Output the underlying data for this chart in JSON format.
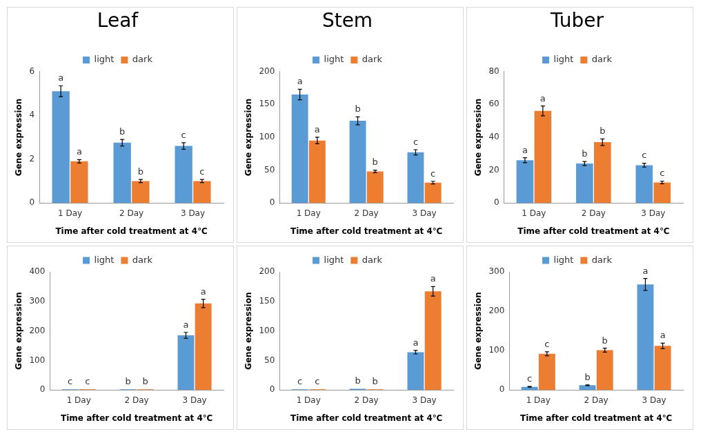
{
  "chart_data": [
    {
      "type": "bar",
      "title": "Leaf",
      "xlabel": "Time after cold treatment at 4℃",
      "ylabel": "Gene expression",
      "categories": [
        "1 Day",
        "2 Day",
        "3 Day"
      ],
      "ylim": [
        0,
        6
      ],
      "yticks": [
        0,
        2,
        4,
        6
      ],
      "legend": "top",
      "grid": false,
      "series": [
        {
          "name": "light",
          "color": "#5b9bd5",
          "values": [
            5.1,
            2.75,
            2.6
          ],
          "errors": [
            0.25,
            0.15,
            0.15
          ],
          "value_labels": [
            "a",
            "b",
            "c"
          ]
        },
        {
          "name": "dark",
          "color": "#ed7d31",
          "values": [
            1.9,
            1.0,
            1.0
          ],
          "errors": [
            0.08,
            0.07,
            0.07
          ],
          "value_labels": [
            "a",
            "b",
            "c"
          ]
        }
      ]
    },
    {
      "type": "bar",
      "title": "Stem",
      "xlabel": "Time after cold treatment at 4℃",
      "ylabel": "Gene expression",
      "categories": [
        "1 Day",
        "2 Day",
        "3 Day"
      ],
      "ylim": [
        0,
        200
      ],
      "yticks": [
        0,
        50,
        100,
        150,
        200
      ],
      "legend": "top",
      "grid": false,
      "series": [
        {
          "name": "light",
          "color": "#5b9bd5",
          "values": [
            165,
            125,
            77
          ],
          "errors": [
            8,
            6,
            4
          ],
          "value_labels": [
            "a",
            "b",
            "c"
          ]
        },
        {
          "name": "dark",
          "color": "#ed7d31",
          "values": [
            95,
            48,
            31
          ],
          "errors": [
            5,
            2,
            2
          ],
          "value_labels": [
            "a",
            "b",
            "c"
          ]
        }
      ]
    },
    {
      "type": "bar",
      "title": "Tuber",
      "xlabel": "Time after cold treatment at 4℃",
      "ylabel": "Gene expression",
      "categories": [
        "1 Day",
        "2 Day",
        "3 Day"
      ],
      "ylim": [
        0,
        80
      ],
      "yticks": [
        0,
        20,
        40,
        60,
        80
      ],
      "legend": "top",
      "grid": false,
      "series": [
        {
          "name": "light",
          "color": "#5b9bd5",
          "values": [
            26,
            24,
            23
          ],
          "errors": [
            1.5,
            1.2,
            1.2
          ],
          "value_labels": [
            "a",
            "b",
            "c"
          ]
        },
        {
          "name": "dark",
          "color": "#ed7d31",
          "values": [
            56,
            37,
            12.5
          ],
          "errors": [
            3,
            2,
            0.8
          ],
          "value_labels": [
            "a",
            "b",
            "c"
          ]
        }
      ]
    },
    {
      "type": "bar",
      "xlabel": "Time after cold treatment at 4℃",
      "ylabel": "Gene expression",
      "categories": [
        "1 Day",
        "2 Day",
        "3 Day"
      ],
      "ylim": [
        0,
        400
      ],
      "yticks": [
        0,
        100,
        200,
        300,
        400
      ],
      "legend": "top",
      "grid": false,
      "series": [
        {
          "name": "light",
          "color": "#5b9bd5",
          "values": [
            2,
            2,
            185
          ],
          "errors": [
            null,
            null,
            10
          ],
          "value_labels": [
            "c",
            "b",
            "a"
          ]
        },
        {
          "name": "dark",
          "color": "#ed7d31",
          "values": [
            2,
            2,
            293
          ],
          "errors": [
            null,
            null,
            14
          ],
          "value_labels": [
            "c",
            "b",
            "a"
          ]
        }
      ]
    },
    {
      "type": "bar",
      "xlabel": "Time after cold treatment at 4℃",
      "ylabel": "Gene expression",
      "categories": [
        "1 Day",
        "2 Day",
        "3 Day"
      ],
      "ylim": [
        0,
        200
      ],
      "yticks": [
        0,
        50,
        100,
        150,
        200
      ],
      "legend": "top",
      "grid": false,
      "series": [
        {
          "name": "light",
          "color": "#5b9bd5",
          "values": [
            1,
            2,
            64
          ],
          "errors": [
            null,
            null,
            3
          ],
          "value_labels": [
            "c",
            "b",
            "a"
          ]
        },
        {
          "name": "dark",
          "color": "#ed7d31",
          "values": [
            1,
            1,
            167
          ],
          "errors": [
            null,
            null,
            8
          ],
          "value_labels": [
            "c",
            "b",
            "a"
          ]
        }
      ]
    },
    {
      "type": "bar",
      "xlabel": "Time after cold treatment at 4℃",
      "ylabel": "Gene expression",
      "categories": [
        "1 Day",
        "2 Day",
        "3 Day"
      ],
      "ylim": [
        0,
        300
      ],
      "yticks": [
        0,
        100,
        200,
        300
      ],
      "legend": "top",
      "grid": false,
      "series": [
        {
          "name": "light",
          "color": "#5b9bd5",
          "values": [
            8,
            12,
            268
          ],
          "errors": [
            1,
            1,
            15
          ],
          "value_labels": [
            "c",
            "b",
            "a"
          ]
        },
        {
          "name": "dark",
          "color": "#ed7d31",
          "values": [
            92,
            101,
            112
          ],
          "errors": [
            5,
            5,
            7
          ],
          "value_labels": [
            "c",
            "b",
            "a"
          ]
        }
      ]
    }
  ]
}
